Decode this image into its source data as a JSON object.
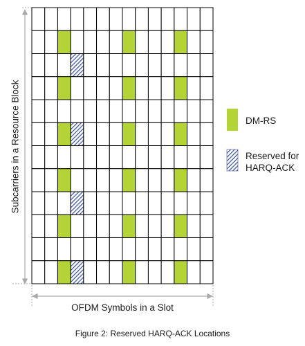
{
  "figure": {
    "caption": "Figure 2: Reserved HARQ-ACK Locations",
    "x_axis_label": "OFDM Symbols in a Slot",
    "y_axis_label": "Subcarriers in a Resource Block"
  },
  "grid": {
    "symbols": 14,
    "subcarriers": 12,
    "dmrs_cells": [
      [
        1,
        2
      ],
      [
        1,
        7
      ],
      [
        1,
        11
      ],
      [
        3,
        2
      ],
      [
        3,
        7
      ],
      [
        3,
        11
      ],
      [
        5,
        2
      ],
      [
        5,
        7
      ],
      [
        5,
        11
      ],
      [
        7,
        2
      ],
      [
        7,
        7
      ],
      [
        7,
        11
      ],
      [
        9,
        2
      ],
      [
        9,
        7
      ],
      [
        9,
        11
      ],
      [
        11,
        2
      ],
      [
        11,
        7
      ],
      [
        11,
        11
      ]
    ],
    "reserved_cells": [
      [
        2,
        3
      ],
      [
        5,
        3
      ],
      [
        8,
        3
      ],
      [
        11,
        3
      ]
    ]
  },
  "legend": {
    "dmrs_label": "DM-RS",
    "reserved_label": "Reserved for HARQ-ACK"
  },
  "colors": {
    "dmrs": "#b4d336",
    "reserved_stripe": "#3a4f9c",
    "grid_line": "#000000",
    "axis_arrow": "#aaaaaa"
  }
}
